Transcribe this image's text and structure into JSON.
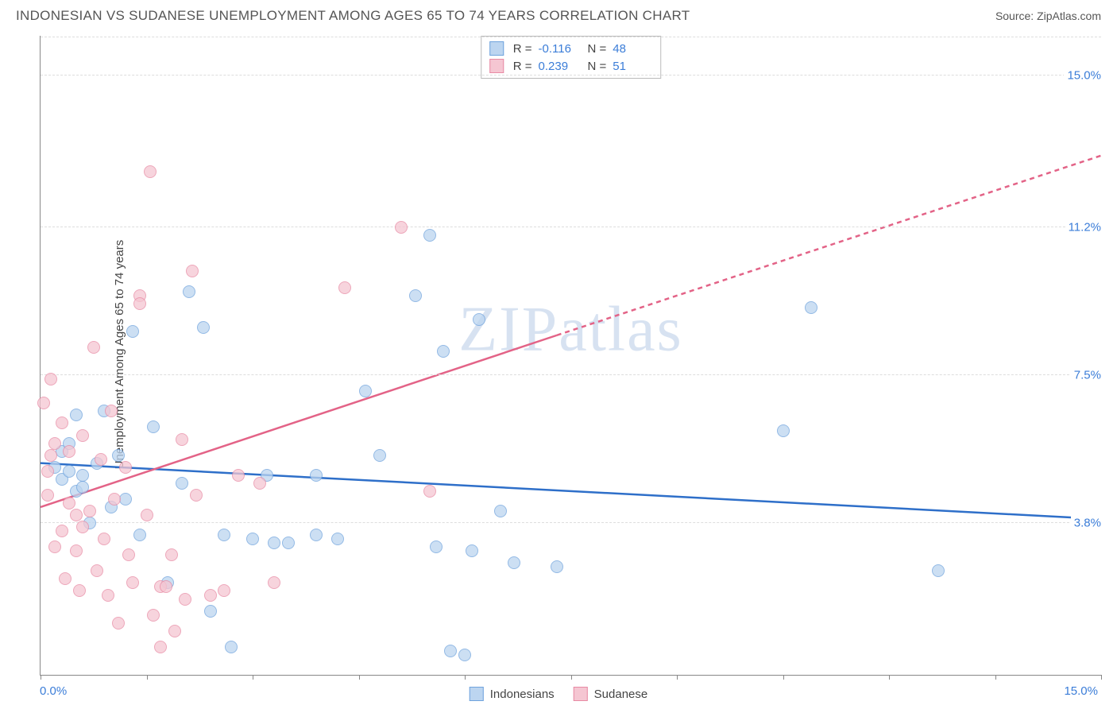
{
  "header": {
    "title": "INDONESIAN VS SUDANESE UNEMPLOYMENT AMONG AGES 65 TO 74 YEARS CORRELATION CHART",
    "source": "Source: ZipAtlas.com"
  },
  "watermark": "ZIPatlas",
  "chart": {
    "type": "scatter",
    "ylabel": "Unemployment Among Ages 65 to 74 years",
    "xlim": [
      0,
      15
    ],
    "ylim": [
      0,
      16
    ],
    "xtick_positions": [
      0,
      1.5,
      3,
      4.5,
      6,
      7.5,
      9,
      10.5,
      12,
      13.5,
      15
    ],
    "xtick_labels": {
      "left": "0.0%",
      "right": "15.0%"
    },
    "ytick_lines": [
      {
        "y": 3.8,
        "label": "3.8%"
      },
      {
        "y": 7.5,
        "label": "7.5%"
      },
      {
        "y": 11.2,
        "label": "11.2%"
      },
      {
        "y": 15.0,
        "label": "15.0%"
      }
    ],
    "grid_color": "#dddddd",
    "axis_color": "#888888",
    "background_color": "#ffffff",
    "series": [
      {
        "name": "Indonesians",
        "fill": "#bcd5f0",
        "stroke": "#6fa3dd",
        "line_color": "#2e6fc9",
        "line_dash": "none",
        "R": "-0.116",
        "N": "48",
        "trend": {
          "x1": 0,
          "y1": 5.3,
          "x2": 15,
          "y2": 3.9
        },
        "points": [
          [
            0.2,
            5.2
          ],
          [
            0.3,
            5.6
          ],
          [
            0.3,
            4.9
          ],
          [
            0.4,
            5.1
          ],
          [
            0.4,
            5.8
          ],
          [
            0.5,
            6.5
          ],
          [
            0.5,
            4.6
          ],
          [
            0.6,
            5.0
          ],
          [
            0.7,
            3.8
          ],
          [
            0.8,
            5.3
          ],
          [
            0.9,
            6.6
          ],
          [
            1.0,
            4.2
          ],
          [
            1.1,
            5.5
          ],
          [
            1.3,
            8.6
          ],
          [
            1.4,
            3.5
          ],
          [
            1.6,
            6.2
          ],
          [
            1.8,
            2.3
          ],
          [
            2.0,
            4.8
          ],
          [
            2.1,
            9.6
          ],
          [
            2.3,
            8.7
          ],
          [
            2.4,
            1.6
          ],
          [
            2.6,
            3.5
          ],
          [
            2.7,
            0.7
          ],
          [
            3.0,
            3.4
          ],
          [
            3.2,
            5.0
          ],
          [
            3.3,
            3.3
          ],
          [
            3.5,
            3.3
          ],
          [
            3.9,
            5.0
          ],
          [
            3.9,
            3.5
          ],
          [
            4.2,
            3.4
          ],
          [
            4.6,
            7.1
          ],
          [
            4.8,
            5.5
          ],
          [
            5.3,
            9.5
          ],
          [
            5.5,
            11.0
          ],
          [
            5.6,
            3.2
          ],
          [
            5.7,
            8.1
          ],
          [
            5.8,
            0.6
          ],
          [
            6.0,
            0.5
          ],
          [
            6.1,
            3.1
          ],
          [
            6.2,
            8.9
          ],
          [
            6.5,
            4.1
          ],
          [
            6.7,
            2.8
          ],
          [
            7.3,
            2.7
          ],
          [
            10.5,
            6.1
          ],
          [
            10.9,
            9.2
          ],
          [
            12.7,
            2.6
          ],
          [
            0.6,
            4.7
          ],
          [
            1.2,
            4.4
          ]
        ]
      },
      {
        "name": "Sudanese",
        "fill": "#f5c6d2",
        "stroke": "#e88aa4",
        "line_color": "#e36387",
        "line_dash": "dashed_tail",
        "R": "0.239",
        "N": "51",
        "trend_solid": {
          "x1": 0,
          "y1": 4.2,
          "x2": 7.3,
          "y2": 8.5
        },
        "trend_dash": {
          "x1": 7.3,
          "y1": 8.5,
          "x2": 15,
          "y2": 13.0
        },
        "points": [
          [
            0.05,
            6.8
          ],
          [
            0.1,
            5.1
          ],
          [
            0.1,
            4.5
          ],
          [
            0.15,
            7.4
          ],
          [
            0.15,
            5.5
          ],
          [
            0.2,
            5.8
          ],
          [
            0.2,
            3.2
          ],
          [
            0.3,
            6.3
          ],
          [
            0.3,
            3.6
          ],
          [
            0.35,
            2.4
          ],
          [
            0.4,
            4.3
          ],
          [
            0.4,
            5.6
          ],
          [
            0.5,
            4.0
          ],
          [
            0.5,
            3.1
          ],
          [
            0.55,
            2.1
          ],
          [
            0.6,
            3.7
          ],
          [
            0.6,
            6.0
          ],
          [
            0.7,
            4.1
          ],
          [
            0.75,
            8.2
          ],
          [
            0.8,
            2.6
          ],
          [
            0.85,
            5.4
          ],
          [
            0.9,
            3.4
          ],
          [
            0.95,
            2.0
          ],
          [
            1.0,
            6.6
          ],
          [
            1.05,
            4.4
          ],
          [
            1.1,
            1.3
          ],
          [
            1.2,
            5.2
          ],
          [
            1.25,
            3.0
          ],
          [
            1.3,
            2.3
          ],
          [
            1.4,
            9.5
          ],
          [
            1.4,
            9.3
          ],
          [
            1.5,
            4.0
          ],
          [
            1.55,
            12.6
          ],
          [
            1.6,
            1.5
          ],
          [
            1.7,
            2.2
          ],
          [
            1.7,
            0.7
          ],
          [
            1.78,
            2.2
          ],
          [
            1.85,
            3.0
          ],
          [
            1.9,
            1.1
          ],
          [
            2.0,
            5.9
          ],
          [
            2.05,
            1.9
          ],
          [
            2.15,
            10.1
          ],
          [
            2.2,
            4.5
          ],
          [
            2.4,
            2.0
          ],
          [
            2.6,
            2.1
          ],
          [
            2.8,
            5.0
          ],
          [
            3.1,
            4.8
          ],
          [
            3.3,
            2.3
          ],
          [
            4.3,
            9.7
          ],
          [
            5.1,
            11.2
          ],
          [
            5.5,
            4.6
          ]
        ]
      }
    ]
  },
  "stats_labels": {
    "R": "R =",
    "N": "N ="
  },
  "legend": {
    "items": [
      {
        "label": "Indonesians",
        "fill": "#bcd5f0",
        "stroke": "#6fa3dd"
      },
      {
        "label": "Sudanese",
        "fill": "#f5c6d2",
        "stroke": "#e88aa4"
      }
    ]
  }
}
